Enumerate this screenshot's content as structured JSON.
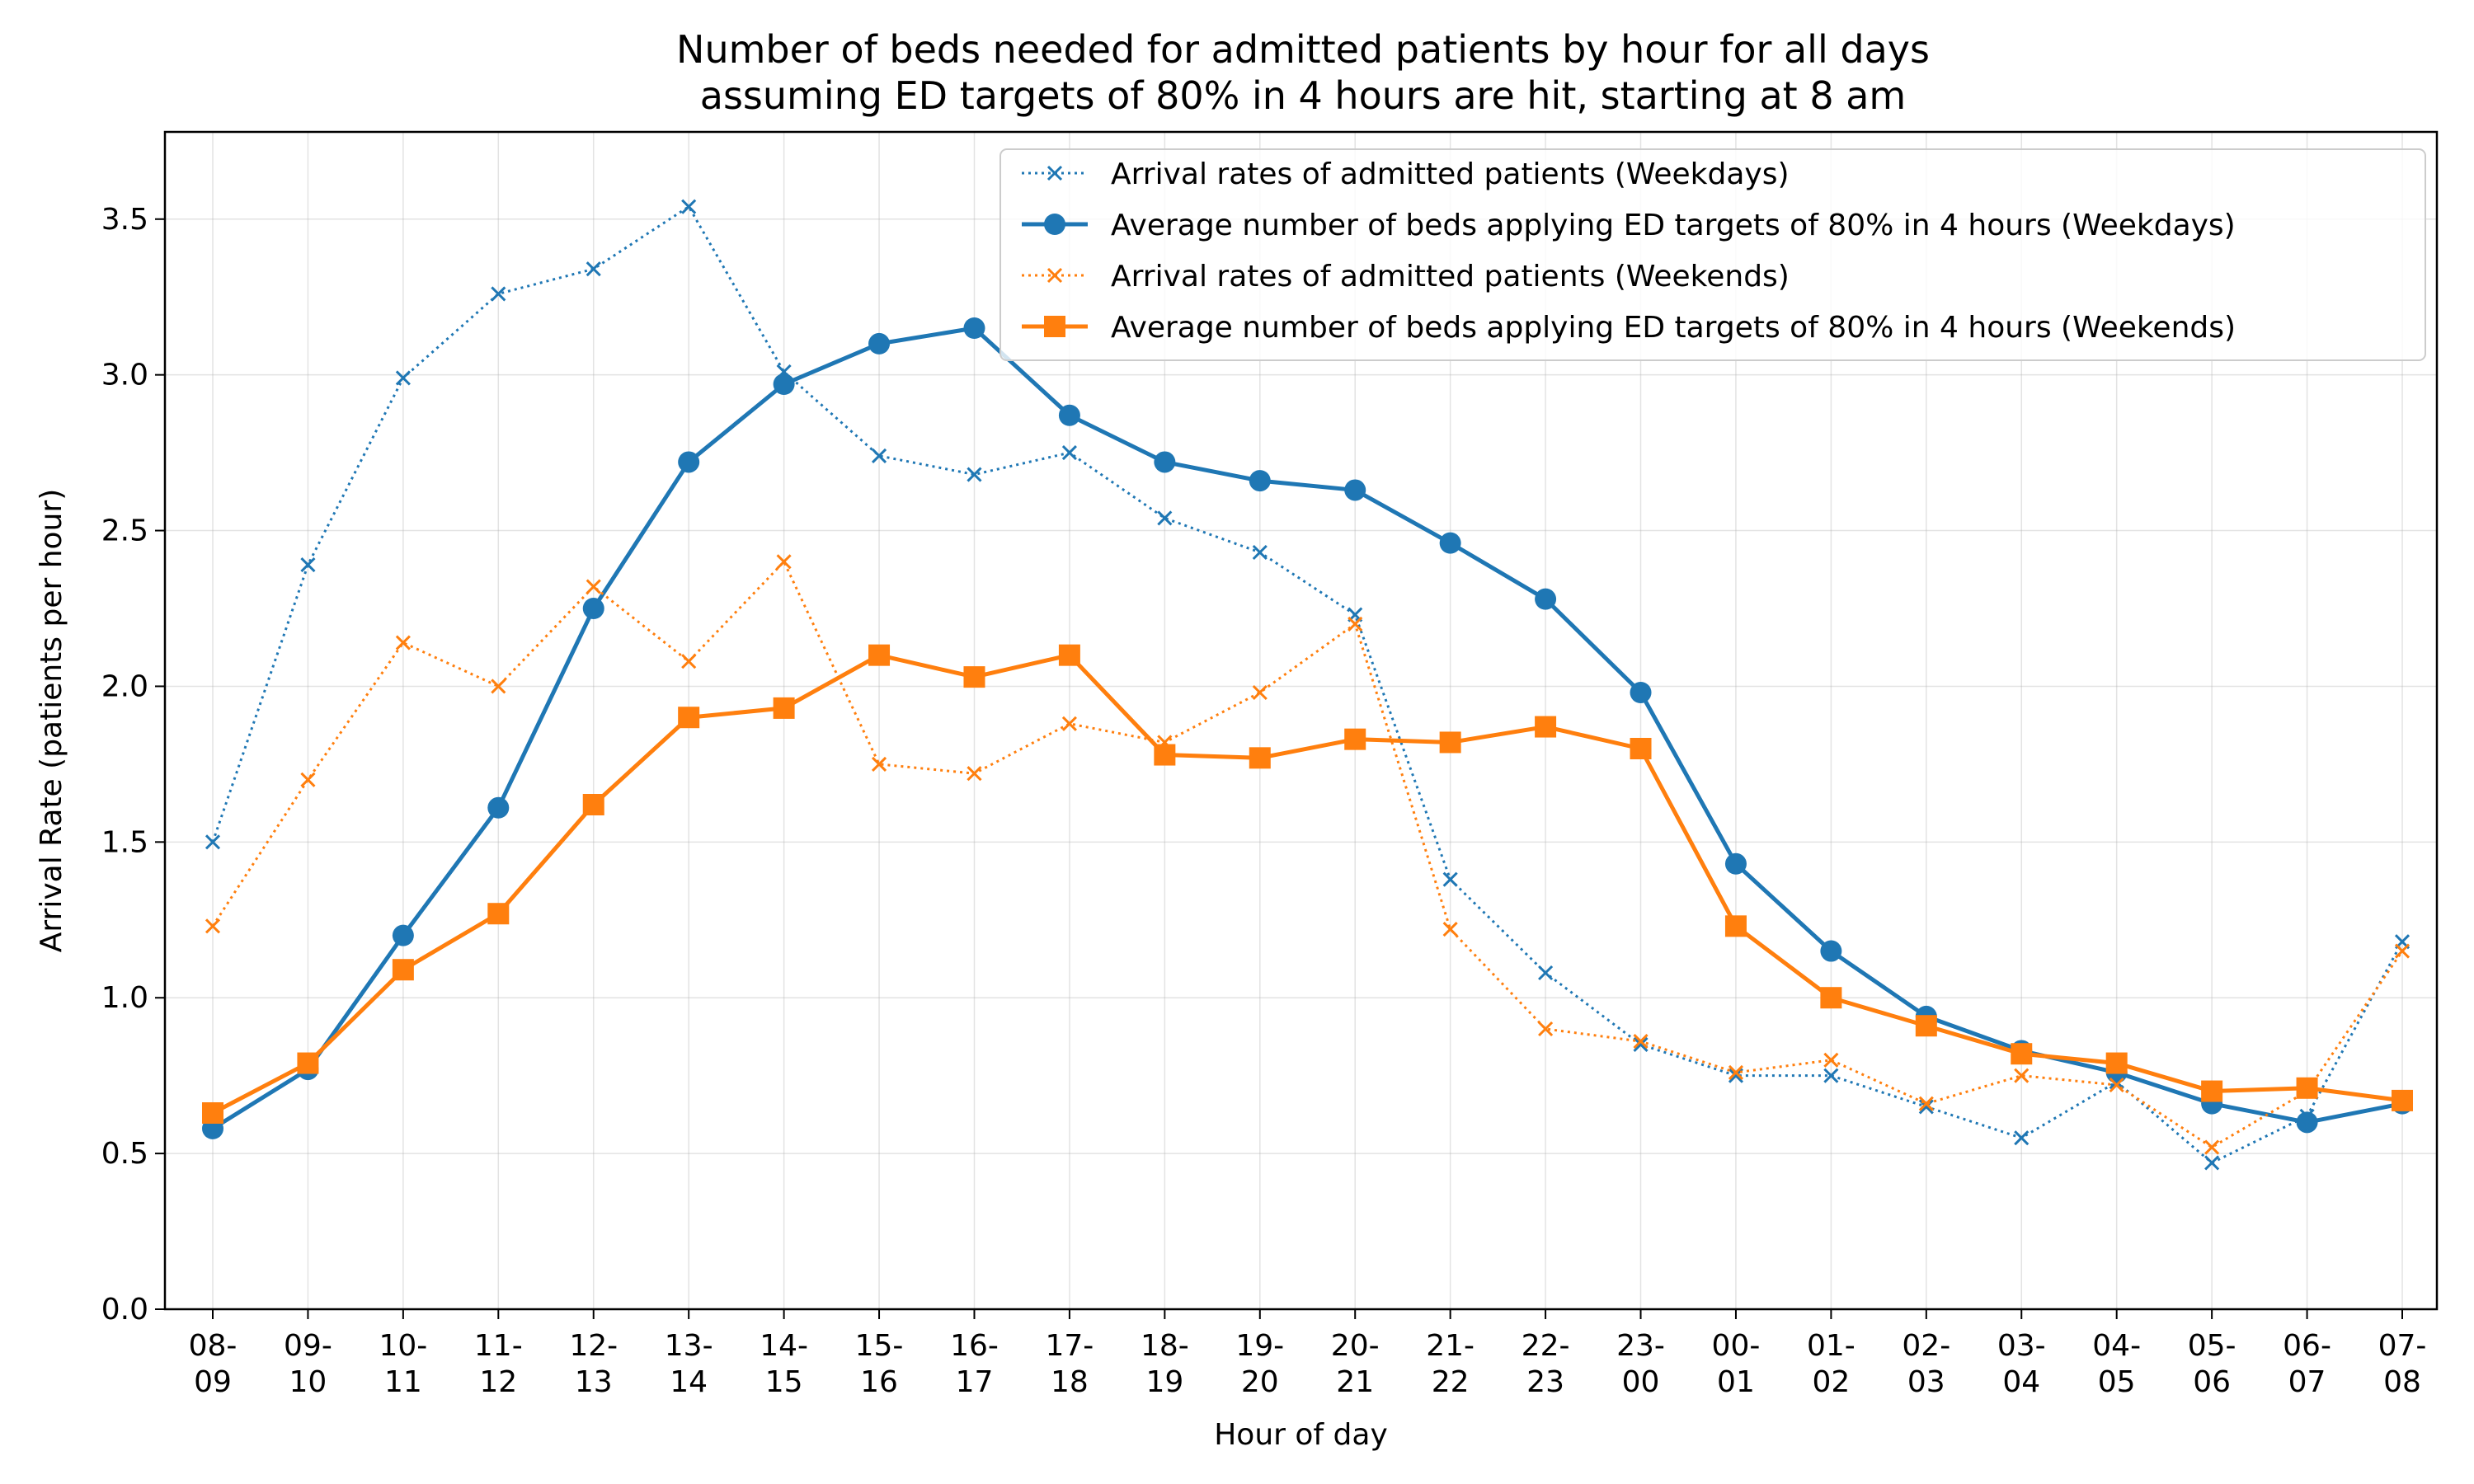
{
  "chart_data": {
    "type": "line",
    "title": [
      "Number of beds needed for admitted patients by hour for all days",
      "assuming ED targets of 80% in 4 hours are hit, starting at 8 am"
    ],
    "xlabel": "Hour of day",
    "ylabel": "Arrival Rate (patients per hour)",
    "ylim": [
      0,
      3.78
    ],
    "yticks": [
      "0.0",
      "0.5",
      "1.0",
      "1.5",
      "2.0",
      "2.5",
      "3.0",
      "3.5"
    ],
    "grid": true,
    "legend_position": "top-right",
    "categories": [
      [
        "08-",
        "09"
      ],
      [
        "09-",
        "10"
      ],
      [
        "10-",
        "11"
      ],
      [
        "11-",
        "12"
      ],
      [
        "12-",
        "13"
      ],
      [
        "13-",
        "14"
      ],
      [
        "14-",
        "15"
      ],
      [
        "15-",
        "16"
      ],
      [
        "16-",
        "17"
      ],
      [
        "17-",
        "18"
      ],
      [
        "18-",
        "19"
      ],
      [
        "19-",
        "20"
      ],
      [
        "20-",
        "21"
      ],
      [
        "21-",
        "22"
      ],
      [
        "22-",
        "23"
      ],
      [
        "23-",
        "00"
      ],
      [
        "00-",
        "01"
      ],
      [
        "01-",
        "02"
      ],
      [
        "02-",
        "03"
      ],
      [
        "03-",
        "04"
      ],
      [
        "04-",
        "05"
      ],
      [
        "05-",
        "06"
      ],
      [
        "06-",
        "07"
      ],
      [
        "07-",
        "08"
      ]
    ],
    "series": [
      {
        "name": "Arrival rates of admitted patients (Weekdays)",
        "color": "#1f77b4",
        "line_style": "dotted",
        "marker": "x",
        "values": [
          1.5,
          2.39,
          2.99,
          3.26,
          3.34,
          3.54,
          3.01,
          2.74,
          2.68,
          2.75,
          2.54,
          2.43,
          2.23,
          1.38,
          1.08,
          0.85,
          0.75,
          0.75,
          0.65,
          0.55,
          0.73,
          0.47,
          0.62,
          1.18
        ]
      },
      {
        "name": "Average number of beds applying ED targets of 80% in 4 hours (Weekdays)",
        "color": "#1f77b4",
        "line_style": "solid",
        "marker": "circle",
        "values": [
          0.58,
          0.77,
          1.2,
          1.61,
          2.25,
          2.72,
          2.97,
          3.1,
          3.15,
          2.87,
          2.72,
          2.66,
          2.63,
          2.46,
          2.28,
          1.98,
          1.43,
          1.15,
          0.94,
          0.83,
          0.76,
          0.66,
          0.6,
          0.66
        ]
      },
      {
        "name": "Arrival rates of admitted patients (Weekends)",
        "color": "#ff7f0e",
        "line_style": "dotted",
        "marker": "x",
        "values": [
          1.23,
          1.7,
          2.14,
          2.0,
          2.32,
          2.08,
          2.4,
          1.75,
          1.72,
          1.88,
          1.82,
          1.98,
          2.2,
          1.22,
          0.9,
          0.86,
          0.76,
          0.8,
          0.66,
          0.75,
          0.72,
          0.52,
          0.7,
          1.15
        ]
      },
      {
        "name": "Average number of beds applying ED targets of 80% in 4 hours (Weekends)",
        "color": "#ff7f0e",
        "line_style": "solid",
        "marker": "square",
        "values": [
          0.63,
          0.79,
          1.09,
          1.27,
          1.62,
          1.9,
          1.93,
          2.1,
          2.03,
          2.1,
          1.78,
          1.77,
          1.83,
          1.82,
          1.87,
          1.8,
          1.23,
          1.0,
          0.91,
          0.82,
          0.79,
          0.7,
          0.71,
          0.67
        ]
      }
    ]
  }
}
